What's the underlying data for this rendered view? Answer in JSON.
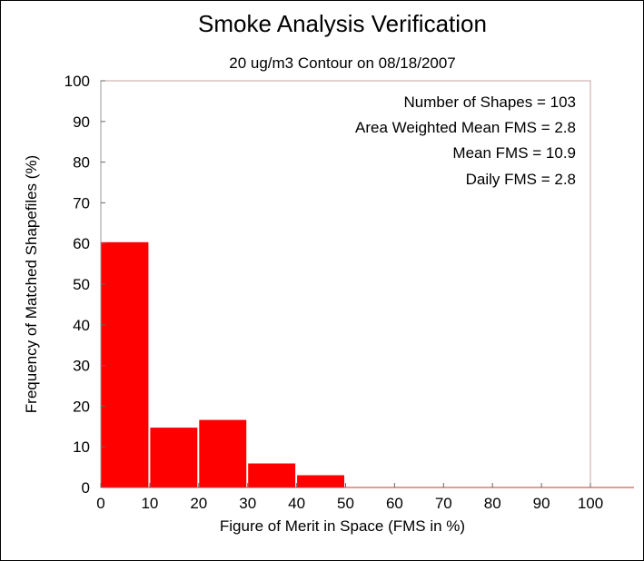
{
  "chart_data": {
    "type": "bar",
    "title": "Smoke Analysis Verification",
    "subtitle": "20 ug/m3 Contour on 08/18/2007",
    "xlabel": "Figure of Merit in Space (FMS in %)",
    "ylabel": "Frequency of Matched Shapefiles (%)",
    "xlim": [
      0,
      100
    ],
    "ylim": [
      0,
      100
    ],
    "xticks": [
      "0",
      "10",
      "20",
      "30",
      "40",
      "50",
      "60",
      "70",
      "80",
      "90",
      "100"
    ],
    "yticks": [
      "0",
      "10",
      "20",
      "30",
      "40",
      "50",
      "60",
      "70",
      "80",
      "90",
      "100"
    ],
    "bins": [
      {
        "start": 0,
        "end": 10,
        "value": 60.2
      },
      {
        "start": 10,
        "end": 20,
        "value": 14.6
      },
      {
        "start": 20,
        "end": 30,
        "value": 16.5
      },
      {
        "start": 30,
        "end": 40,
        "value": 5.8
      },
      {
        "start": 40,
        "end": 50,
        "value": 2.9
      },
      {
        "start": 50,
        "end": 60,
        "value": 0
      },
      {
        "start": 60,
        "end": 70,
        "value": 0
      },
      {
        "start": 70,
        "end": 80,
        "value": 0
      },
      {
        "start": 80,
        "end": 90,
        "value": 0
      },
      {
        "start": 90,
        "end": 100,
        "value": 0
      }
    ],
    "bar_color": "#ff0000",
    "stats": [
      "Number of Shapes = 103",
      "Area Weighted Mean FMS = 2.8",
      "Mean FMS = 10.9",
      "Daily FMS = 2.8"
    ],
    "grid": false
  }
}
